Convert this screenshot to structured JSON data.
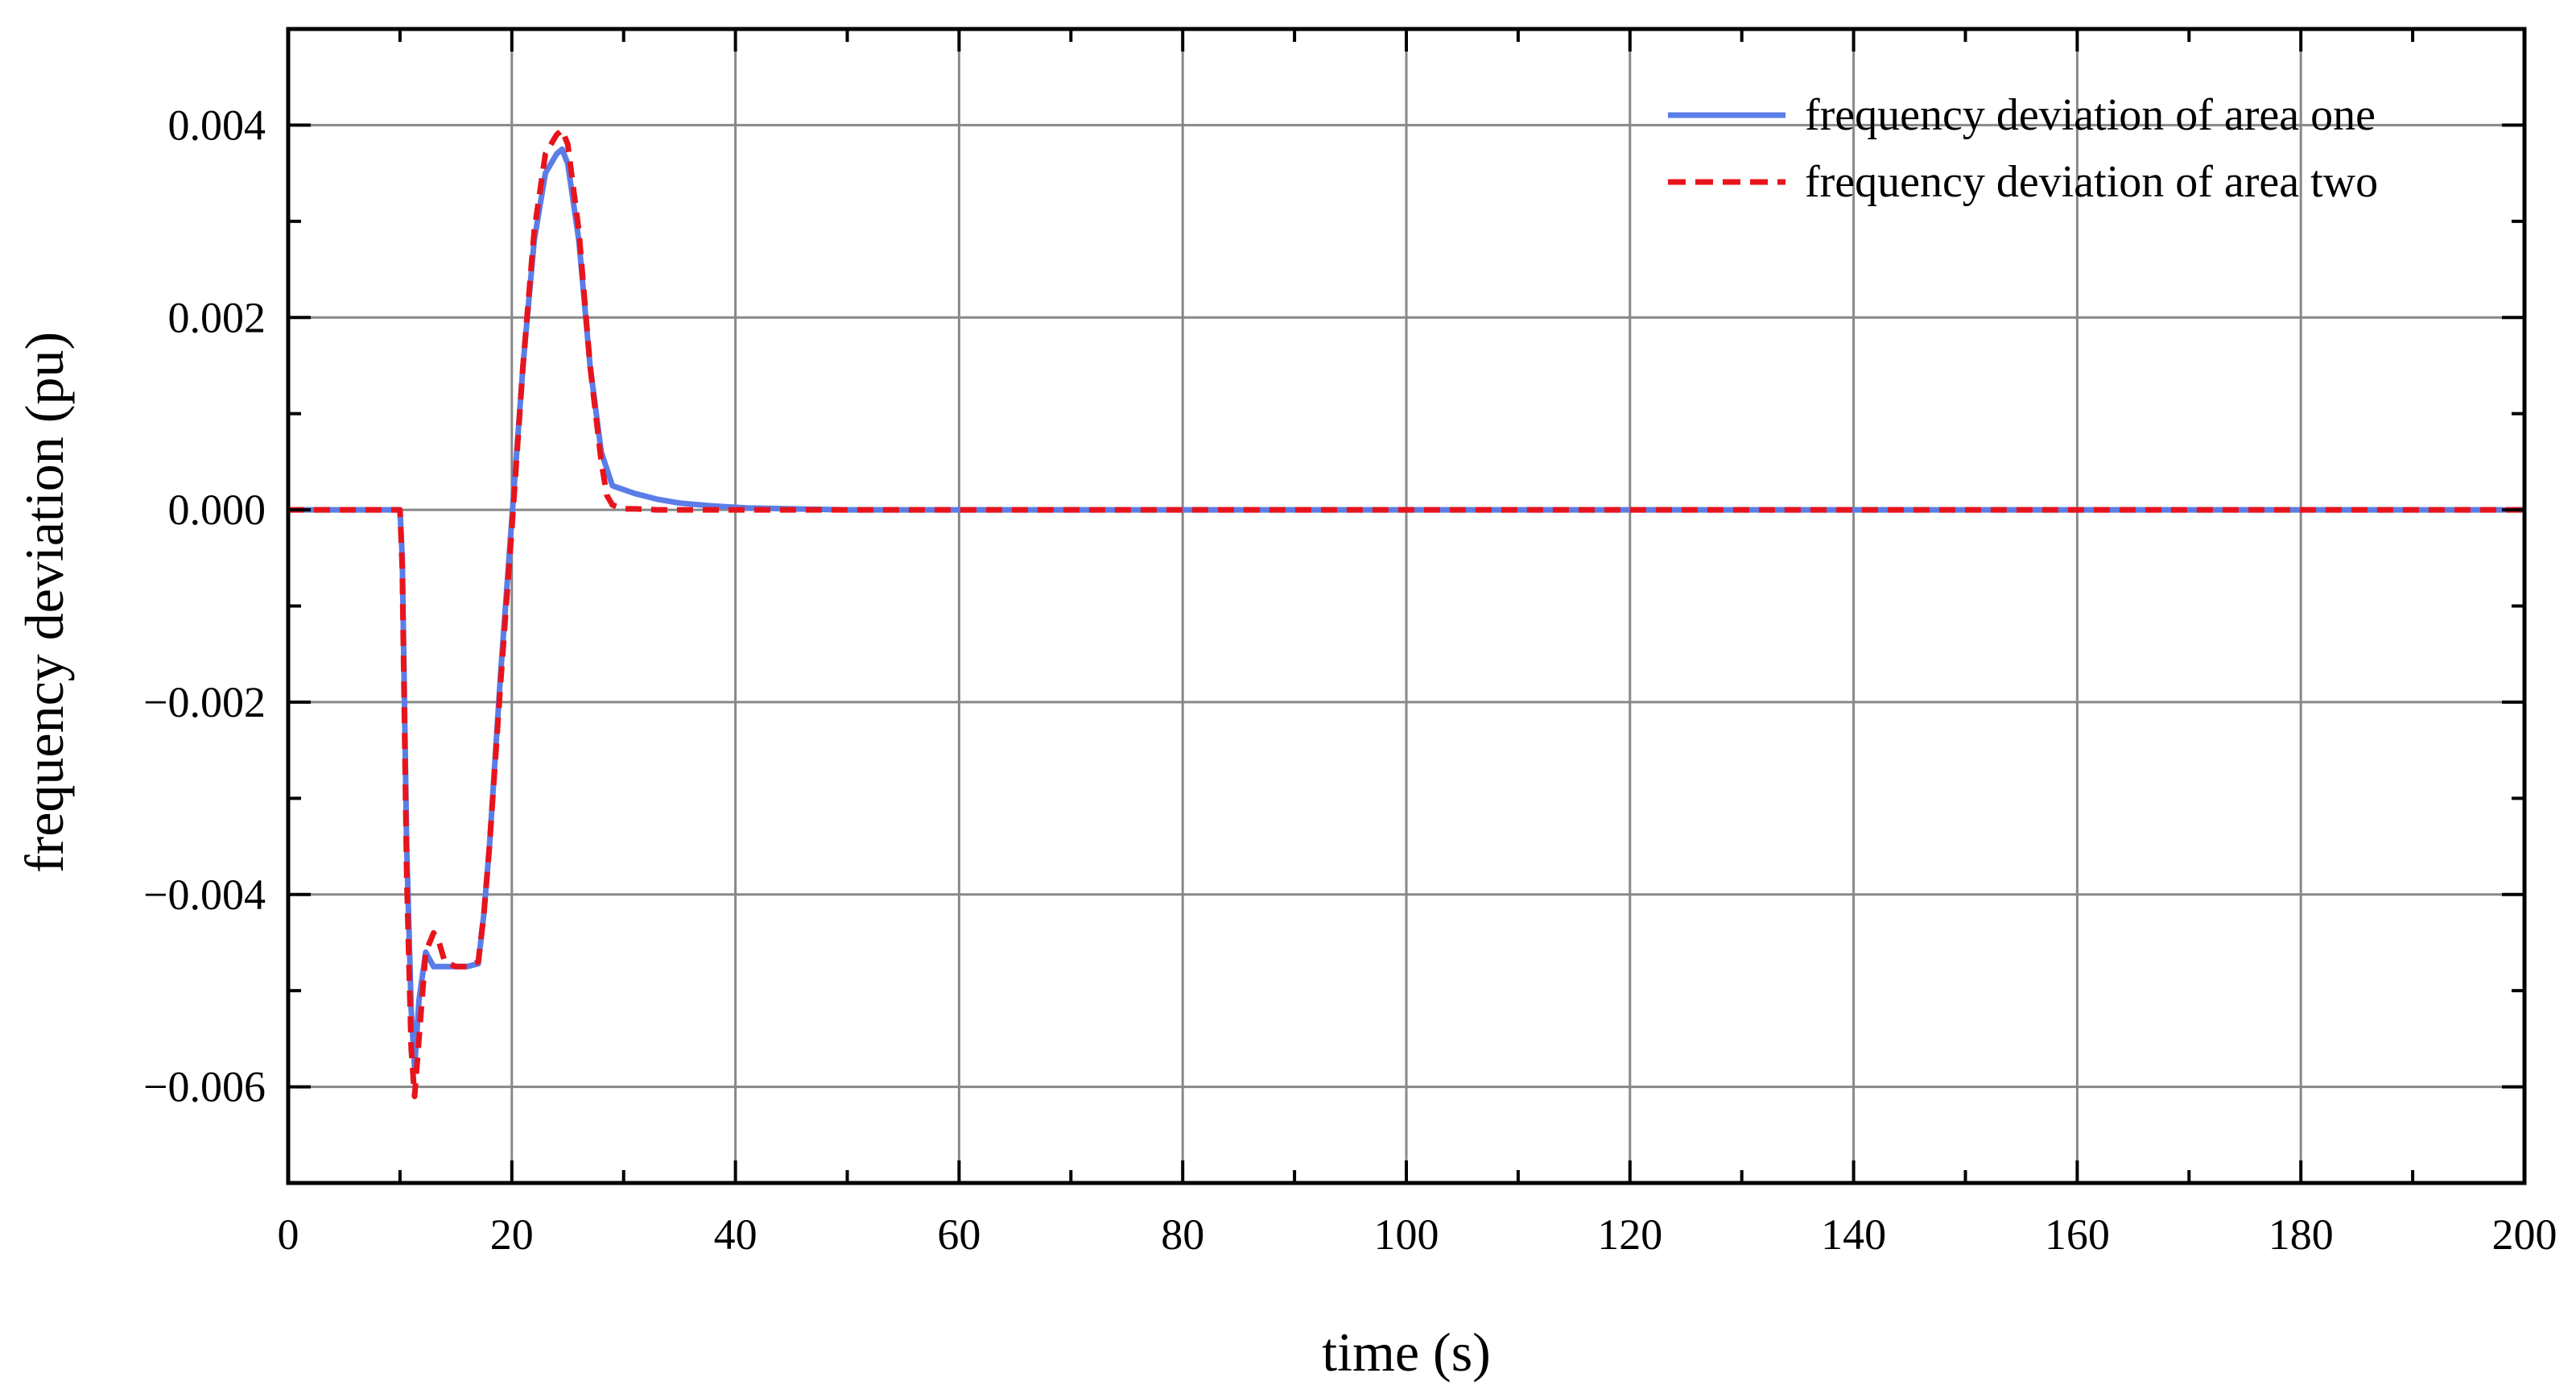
{
  "chart_data": {
    "type": "line",
    "xlabel": "time (s)",
    "ylabel": "frequency deviation (pu)",
    "xlim": [
      0,
      200
    ],
    "ylim": [
      -0.007,
      0.005
    ],
    "xticks": [
      0,
      20,
      40,
      60,
      80,
      100,
      120,
      140,
      160,
      180,
      200
    ],
    "xtick_labels": [
      "0",
      "20",
      "40",
      "60",
      "80",
      "100",
      "120",
      "140",
      "160",
      "180",
      "200"
    ],
    "yticks": [
      -0.006,
      -0.004,
      -0.002,
      0.0,
      0.002,
      0.004
    ],
    "ytick_labels": [
      "−0.006",
      "−0.004",
      "−0.002",
      "0.000",
      "0.002",
      "0.004"
    ],
    "grid": true,
    "legend_position": "top-right",
    "series": [
      {
        "name": "frequency deviation of area one",
        "color": "#5b7de8",
        "style": "solid",
        "x": [
          0,
          10,
          10.2,
          10.6,
          11.0,
          11.3,
          11.7,
          12.3,
          13.0,
          14.0,
          15.0,
          16.0,
          17.0,
          17.5,
          18.0,
          19.0,
          20.0,
          21.0,
          22.0,
          23.0,
          24.0,
          24.5,
          25.0,
          26.0,
          27.0,
          28.0,
          29.0,
          31.0,
          33.0,
          35.0,
          38.0,
          41.0,
          45.0,
          50.0,
          60.0,
          200
        ],
        "y": [
          0,
          0,
          -0.0005,
          -0.0035,
          -0.0052,
          -0.0058,
          -0.0051,
          -0.0046,
          -0.00475,
          -0.00475,
          -0.00475,
          -0.00475,
          -0.00472,
          -0.0042,
          -0.0035,
          -0.0017,
          -0.0001,
          0.0015,
          0.0028,
          0.0035,
          0.0037,
          0.00375,
          0.0036,
          0.0028,
          0.0015,
          0.0006,
          0.00025,
          0.00017,
          0.00011,
          7e-05,
          4e-05,
          2e-05,
          1e-05,
          0.0,
          0.0,
          0.0
        ]
      },
      {
        "name": "frequency deviation of area two",
        "color": "#e8141c",
        "style": "dashed",
        "x": [
          0,
          10,
          10.2,
          10.6,
          11.0,
          11.3,
          11.7,
          12.3,
          13.0,
          13.5,
          14.0,
          15.0,
          16.0,
          17.0,
          17.5,
          18.0,
          19.0,
          20.0,
          21.0,
          22.0,
          23.0,
          24.0,
          24.5,
          25.0,
          26.0,
          27.0,
          28.0,
          28.5,
          29.0,
          30.0,
          31.0,
          33.0,
          40.0,
          200
        ],
        "y": [
          0,
          0,
          -0.0006,
          -0.0038,
          -0.0056,
          -0.0061,
          -0.0055,
          -0.0046,
          -0.0044,
          -0.0045,
          -0.0047,
          -0.00475,
          -0.00475,
          -0.0047,
          -0.0042,
          -0.0035,
          -0.0018,
          -0.0002,
          0.0015,
          0.0029,
          0.0037,
          0.0039,
          0.00395,
          0.0038,
          0.0029,
          0.0015,
          0.0005,
          0.00015,
          5e-05,
          1e-05,
          1e-05,
          0.0,
          0.0,
          0.0
        ]
      }
    ]
  },
  "style": {
    "grid_color": "#888888",
    "axis_color": "#000000",
    "background": "#ffffff"
  }
}
